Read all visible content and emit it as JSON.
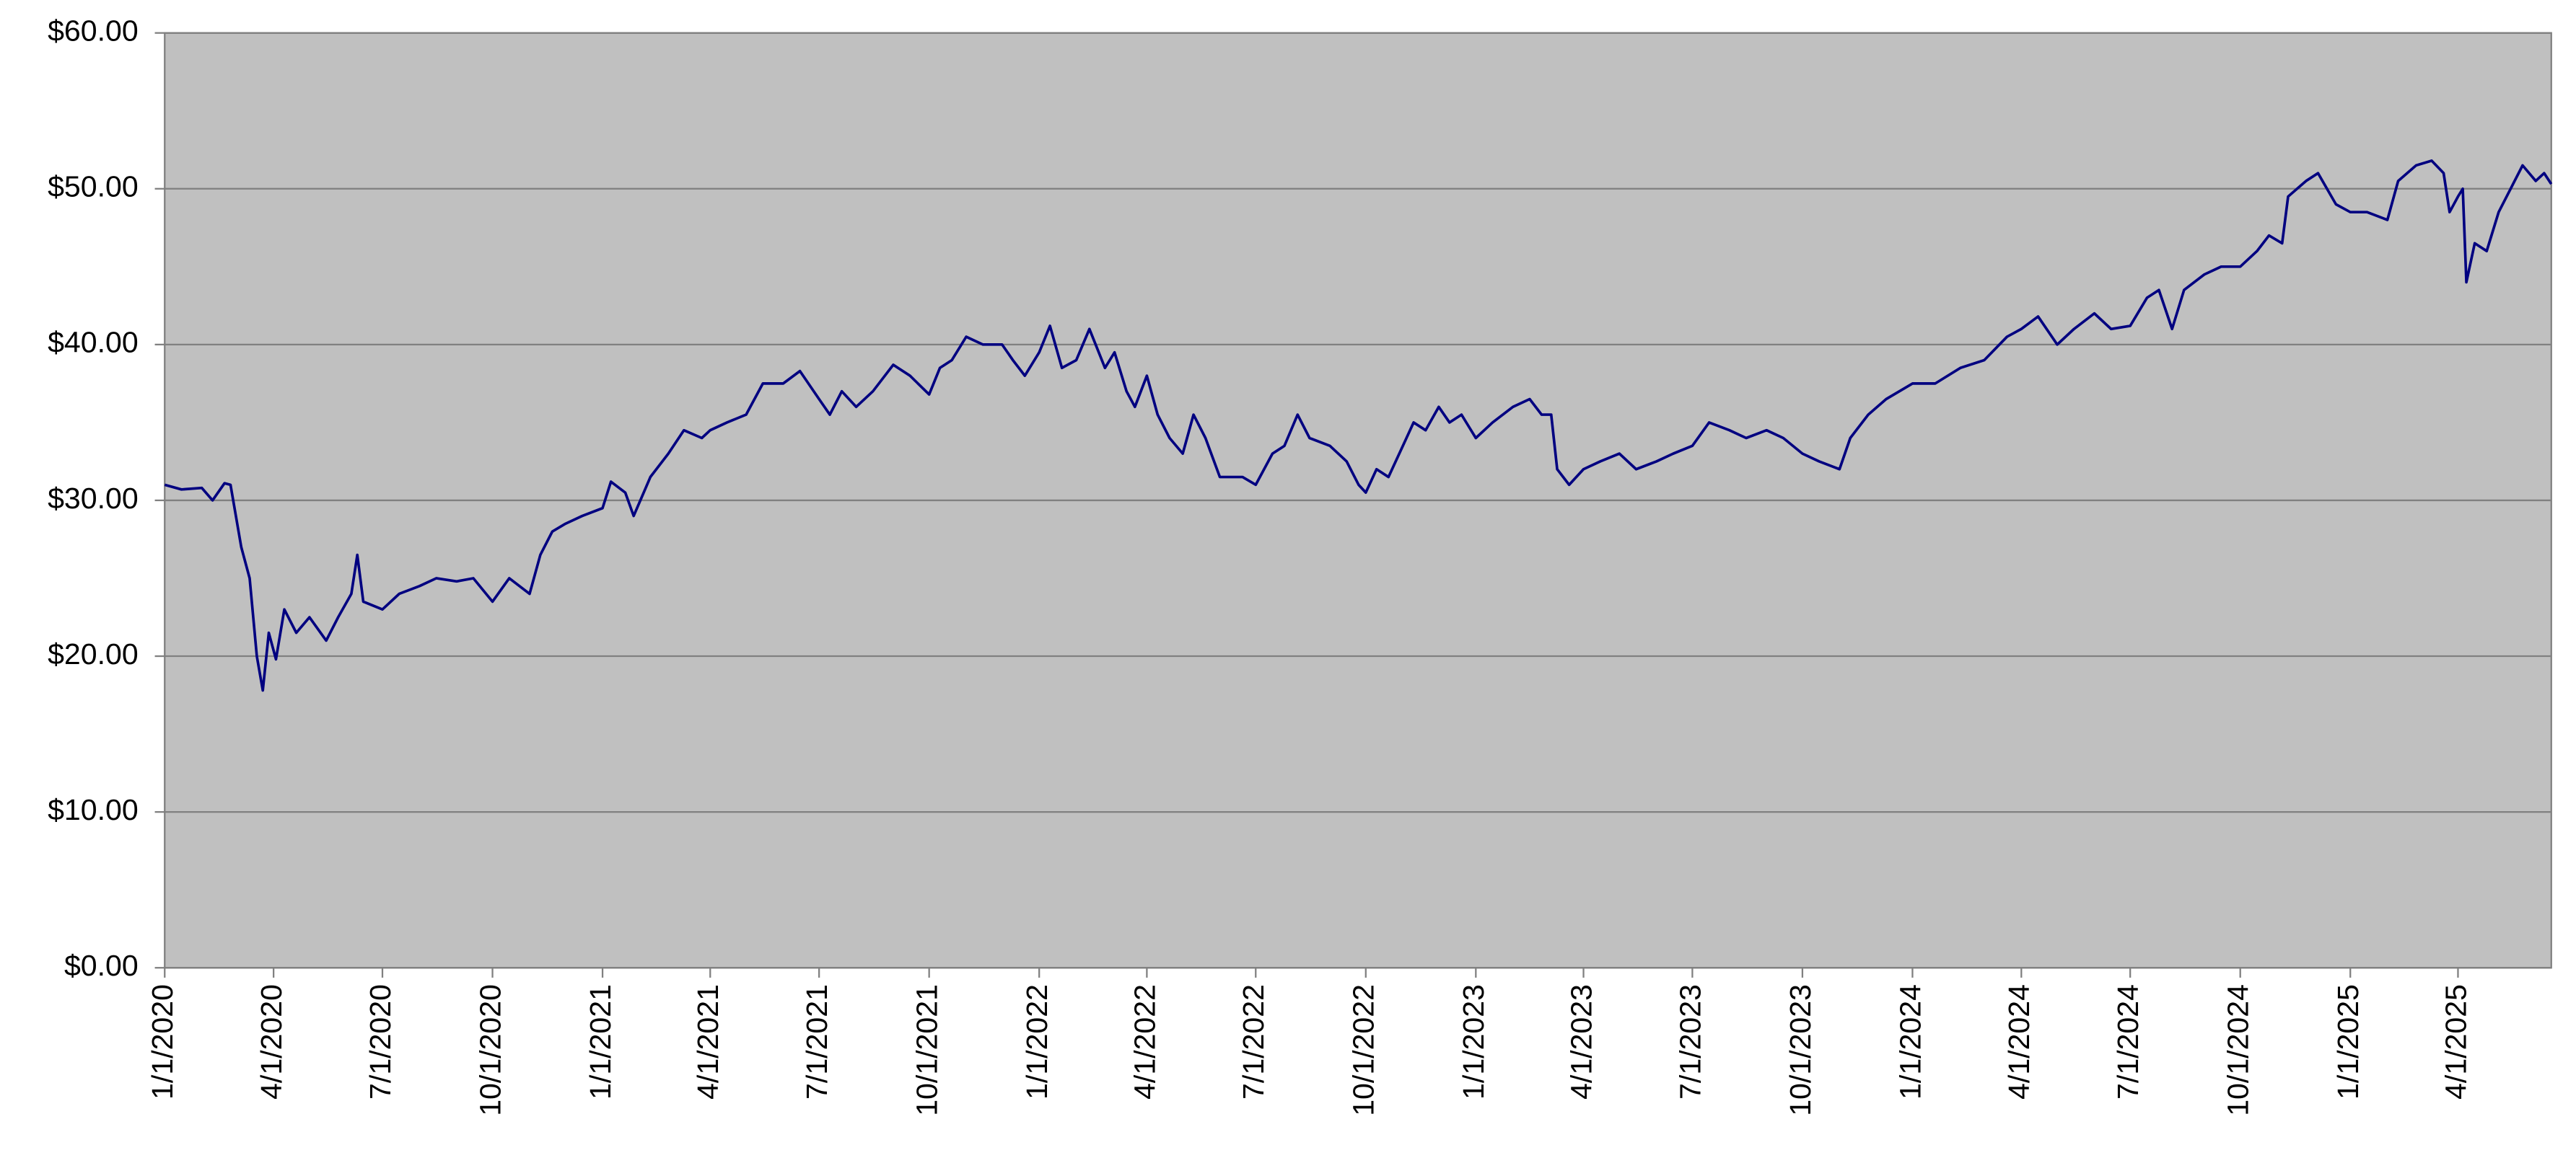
{
  "chart_data": {
    "type": "line",
    "color": "#000080",
    "grid": true,
    "ylim": [
      0,
      60
    ],
    "yticks": [
      {
        "value": 0,
        "label": "$0.00"
      },
      {
        "value": 10,
        "label": "$10.00"
      },
      {
        "value": 20,
        "label": "$20.00"
      },
      {
        "value": 30,
        "label": "$30.00"
      },
      {
        "value": 40,
        "label": "$40.00"
      },
      {
        "value": 50,
        "label": "$50.00"
      },
      {
        "value": 60,
        "label": "$60.00"
      }
    ],
    "xlim": [
      "1/1/2020",
      "6/18/2025"
    ],
    "xticks": [
      "1/1/2020",
      "4/1/2020",
      "7/1/2020",
      "10/1/2020",
      "1/1/2021",
      "4/1/2021",
      "7/1/2021",
      "10/1/2021",
      "1/1/2022",
      "4/1/2022",
      "7/1/2022",
      "10/1/2022",
      "1/1/2023",
      "4/1/2023",
      "7/1/2023",
      "10/1/2023",
      "1/1/2024",
      "4/1/2024",
      "7/1/2024",
      "10/1/2024",
      "1/1/2025",
      "4/1/2025"
    ],
    "x": [
      "1/1/2020",
      "1/15/2020",
      "2/1/2020",
      "2/10/2020",
      "2/20/2020",
      "2/25/2020",
      "3/5/2020",
      "3/12/2020",
      "3/18/2020",
      "3/23/2020",
      "3/28/2020",
      "4/3/2020",
      "4/10/2020",
      "4/20/2020",
      "5/1/2020",
      "5/15/2020",
      "5/25/2020",
      "6/5/2020",
      "6/10/2020",
      "6/15/2020",
      "7/1/2020",
      "7/15/2020",
      "8/1/2020",
      "8/15/2020",
      "9/1/2020",
      "9/15/2020",
      "10/1/2020",
      "10/15/2020",
      "11/1/2020",
      "11/10/2020",
      "11/20/2020",
      "12/1/2020",
      "12/15/2020",
      "1/1/2021",
      "1/8/2021",
      "1/20/2021",
      "1/27/2021",
      "2/10/2021",
      "2/25/2021",
      "3/10/2021",
      "3/25/2021",
      "4/1/2021",
      "4/15/2021",
      "5/1/2021",
      "5/15/2021",
      "6/1/2021",
      "6/15/2021",
      "7/1/2021",
      "7/10/2021",
      "7/20/2021",
      "8/1/2021",
      "8/15/2021",
      "9/1/2021",
      "9/15/2021",
      "10/1/2021",
      "10/10/2021",
      "10/20/2021",
      "11/1/2021",
      "11/15/2021",
      "12/1/2021",
      "12/10/2021",
      "12/20/2021",
      "1/1/2022",
      "1/10/2022",
      "1/20/2022",
      "2/1/2022",
      "2/12/2022",
      "2/25/2022",
      "3/5/2022",
      "3/15/2022",
      "3/22/2022",
      "4/1/2022",
      "4/10/2022",
      "4/20/2022",
      "5/1/2022",
      "5/10/2022",
      "5/20/2022",
      "6/1/2022",
      "6/10/2022",
      "6/20/2022",
      "7/1/2022",
      "7/15/2022",
      "7/25/2022",
      "8/5/2022",
      "8/15/2022",
      "9/1/2022",
      "9/15/2022",
      "9/25/2022",
      "10/1/2022",
      "10/10/2022",
      "10/20/2022",
      "11/1/2022",
      "11/10/2022",
      "11/20/2022",
      "12/1/2022",
      "12/10/2022",
      "12/20/2022",
      "1/1/2023",
      "1/15/2023",
      "2/1/2023",
      "2/15/2023",
      "2/25/2023",
      "3/5/2023",
      "3/10/2023",
      "3/20/2023",
      "4/1/2023",
      "4/15/2023",
      "5/1/2023",
      "5/15/2023",
      "6/1/2023",
      "6/15/2023",
      "7/1/2023",
      "7/15/2023",
      "8/1/2023",
      "8/15/2023",
      "9/1/2023",
      "9/15/2023",
      "10/1/2023",
      "10/15/2023",
      "11/1/2023",
      "11/10/2023",
      "11/25/2023",
      "12/10/2023",
      "1/1/2024",
      "1/20/2024",
      "2/10/2024",
      "3/1/2024",
      "3/20/2024",
      "4/1/2024",
      "4/15/2024",
      "5/1/2024",
      "5/15/2024",
      "6/1/2024",
      "6/15/2024",
      "7/1/2024",
      "7/15/2024",
      "7/25/2024",
      "8/5/2024",
      "8/15/2024",
      "9/1/2024",
      "9/15/2024",
      "10/1/2024",
      "10/15/2024",
      "10/25/2024",
      "11/5/2024",
      "11/10/2024",
      "11/25/2024",
      "12/5/2024",
      "12/20/2024",
      "1/1/2025",
      "1/15/2025",
      "2/1/2025",
      "2/10/2025",
      "2/25/2025",
      "3/10/2025",
      "3/20/2025",
      "3/25/2025",
      "4/1/2025",
      "4/5/2025",
      "4/8/2025",
      "4/15/2025",
      "4/25/2025",
      "5/5/2025",
      "5/15/2025",
      "5/25/2025",
      "6/5/2025",
      "6/12/2025",
      "6/18/2025"
    ],
    "values": [
      31.0,
      30.7,
      30.8,
      30.0,
      31.1,
      31.0,
      27.0,
      25.0,
      20.0,
      17.8,
      21.5,
      19.8,
      23.0,
      21.5,
      22.5,
      21.0,
      22.5,
      24.0,
      26.5,
      23.5,
      23.0,
      24.0,
      24.5,
      25.0,
      24.8,
      25.0,
      23.5,
      25.0,
      24.0,
      26.5,
      28.0,
      28.5,
      29.0,
      29.5,
      31.2,
      30.5,
      29.0,
      31.5,
      33.0,
      34.5,
      34.0,
      34.5,
      35.0,
      35.5,
      37.5,
      37.5,
      38.3,
      36.5,
      35.5,
      37.0,
      36.0,
      37.0,
      38.7,
      38.0,
      36.8,
      38.5,
      39.0,
      40.5,
      40.0,
      40.0,
      39.0,
      38.0,
      39.5,
      41.2,
      38.5,
      39.0,
      41.0,
      38.5,
      39.5,
      37.0,
      36.0,
      38.0,
      35.5,
      34.0,
      33.0,
      35.5,
      34.0,
      31.5,
      31.5,
      31.5,
      31.0,
      33.0,
      33.5,
      35.5,
      34.0,
      33.5,
      32.5,
      31.0,
      30.5,
      32.0,
      31.5,
      33.5,
      35.0,
      34.5,
      36.0,
      35.0,
      35.5,
      34.0,
      35.0,
      36.0,
      36.5,
      35.5,
      35.5,
      32.0,
      31.0,
      32.0,
      32.5,
      33.0,
      32.0,
      32.5,
      33.0,
      33.5,
      35.0,
      34.5,
      34.0,
      34.5,
      34.0,
      33.0,
      32.5,
      32.0,
      34.0,
      35.5,
      36.5,
      37.5,
      37.5,
      38.5,
      39.0,
      40.5,
      41.0,
      41.8,
      40.0,
      41.0,
      42.0,
      41.0,
      41.2,
      43.0,
      43.5,
      41.0,
      43.5,
      44.5,
      45.0,
      45.0,
      46.0,
      47.0,
      46.5,
      49.5,
      50.5,
      51.0,
      49.0,
      48.5,
      48.5,
      48.0,
      50.5,
      51.5,
      51.8,
      51.0,
      48.5,
      49.5,
      50.0,
      44.0,
      46.5,
      46.0,
      48.5,
      50.0,
      51.5,
      50.5,
      51.0,
      50.3
    ]
  }
}
